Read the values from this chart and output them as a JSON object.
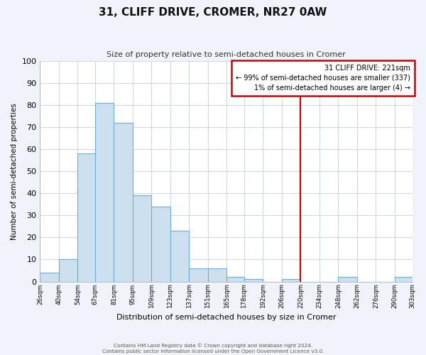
{
  "title": "31, CLIFF DRIVE, CROMER, NR27 0AW",
  "subtitle": "Size of property relative to semi-detached houses in Cromer",
  "xlabel": "Distribution of semi-detached houses by size in Cromer",
  "ylabel": "Number of semi-detached properties",
  "bar_edges": [
    26,
    40,
    54,
    67,
    81,
    95,
    109,
    123,
    137,
    151,
    165,
    178,
    192,
    206,
    220,
    234,
    248,
    262,
    276,
    290,
    303
  ],
  "bar_heights": [
    4,
    10,
    58,
    81,
    72,
    39,
    34,
    23,
    6,
    6,
    2,
    1,
    0,
    1,
    0,
    0,
    2,
    0,
    0,
    2
  ],
  "bar_color": "#cce0f0",
  "bar_edge_color": "#6aafd6",
  "property_line_x": 220,
  "property_line_color": "#cc0000",
  "ylim": [
    0,
    100
  ],
  "yticks": [
    0,
    10,
    20,
    30,
    40,
    50,
    60,
    70,
    80,
    90,
    100
  ],
  "tick_labels": [
    "26sqm",
    "40sqm",
    "54sqm",
    "67sqm",
    "81sqm",
    "95sqm",
    "109sqm",
    "123sqm",
    "137sqm",
    "151sqm",
    "165sqm",
    "178sqm",
    "192sqm",
    "206sqm",
    "220sqm",
    "234sqm",
    "248sqm",
    "262sqm",
    "276sqm",
    "290sqm",
    "303sqm"
  ],
  "annotation_title": "31 CLIFF DRIVE: 221sqm",
  "annotation_line1": "← 99% of semi-detached houses are smaller (337)",
  "annotation_line2": "1% of semi-detached houses are larger (4) →",
  "footer_line1": "Contains HM Land Registry data © Crown copyright and database right 2024.",
  "footer_line2": "Contains public sector information licensed under the Open Government Licence v3.0.",
  "fig_background_color": "#f0f4fa",
  "plot_background_color": "#ffffff",
  "grid_color": "#d0d8e8"
}
